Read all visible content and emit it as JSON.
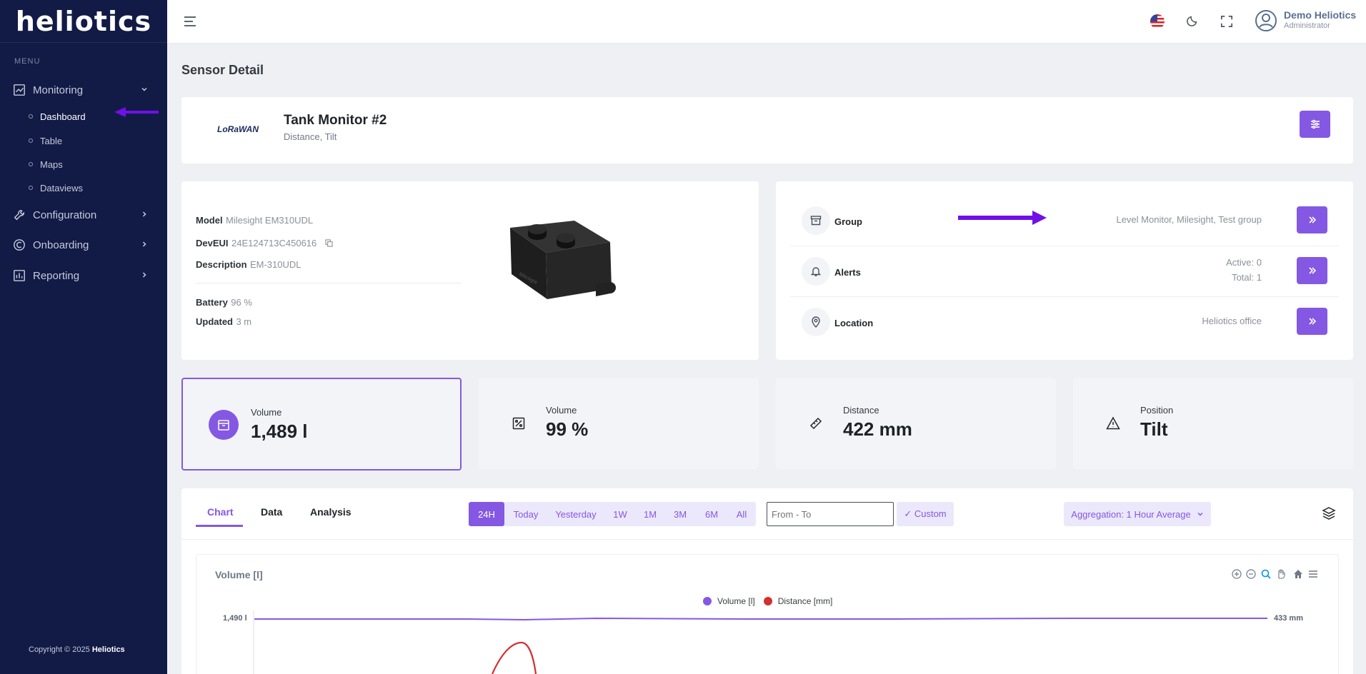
{
  "app": {
    "logo": "heliotics"
  },
  "sidebar": {
    "menu_title": "MENU",
    "items": [
      {
        "label": "Monitoring",
        "icon": "chart-line-icon",
        "expanded": true
      },
      {
        "label": "Configuration",
        "icon": "wrench-icon"
      },
      {
        "label": "Onboarding",
        "icon": "onboarding-icon"
      },
      {
        "label": "Reporting",
        "icon": "bar-chart-icon"
      }
    ],
    "subitems": [
      "Dashboard",
      "Table",
      "Maps",
      "Dataviews"
    ],
    "copyright_prefix": "Copyright © 2025 ",
    "copyright_brand": "Heliotics"
  },
  "header": {
    "user_name": "Demo Heliotics",
    "user_role": "Administrator",
    "icons": [
      "menu-icon",
      "us-flag-icon",
      "moon-icon",
      "fullscreen-icon",
      "user-circle-icon"
    ]
  },
  "page": {
    "title": "Sensor Detail"
  },
  "device": {
    "logo": "LoRaWAN",
    "name": "Tank Monitor #2",
    "types": "Distance, Tilt",
    "info": {
      "model_label": "Model",
      "model": "Milesight EM310UDL",
      "deveui_label": "DevEUI",
      "deveui": "24E124713C450616",
      "description_label": "Description",
      "description": "EM-310UDL",
      "battery_label": "Battery",
      "battery": "96 %",
      "updated_label": "Updated",
      "updated": "3 m"
    },
    "image_brand": "Milesight"
  },
  "side_panel": {
    "group_label": "Group",
    "group_value": "Level Monitor, Milesight, Test group",
    "alerts_label": "Alerts",
    "alerts_active": "Active: 0",
    "alerts_total": "Total: 1",
    "location_label": "Location",
    "location_value": "Heliotics office"
  },
  "tiles": [
    {
      "label": "Volume",
      "value": "1,489 l",
      "icon": "box-icon"
    },
    {
      "label": "Volume",
      "value": "99 %",
      "icon": "percent-icon"
    },
    {
      "label": "Distance",
      "value": "422 mm",
      "icon": "ruler-icon"
    },
    {
      "label": "Position",
      "value": "Tilt",
      "icon": "warning-icon"
    }
  ],
  "tabs": [
    "Chart",
    "Data",
    "Analysis"
  ],
  "ranges": [
    "24H",
    "Today",
    "Yesterday",
    "1W",
    "1M",
    "3M",
    "6M",
    "All"
  ],
  "range_active": "24H",
  "date_input_placeholder": "From - To",
  "custom_label": "✓ Custom",
  "aggregation_label": "Aggregation: 1 Hour Average",
  "chart_data": {
    "type": "line",
    "title": "Volume [l]",
    "series": [
      {
        "name": "Volume [l]",
        "color": "#8458e3"
      },
      {
        "name": "Distance [mm]",
        "color": "#d32f2f"
      }
    ],
    "y_left_tick": "1,490 l",
    "y_right_tick": "433 mm",
    "legend_position": "top-center"
  }
}
